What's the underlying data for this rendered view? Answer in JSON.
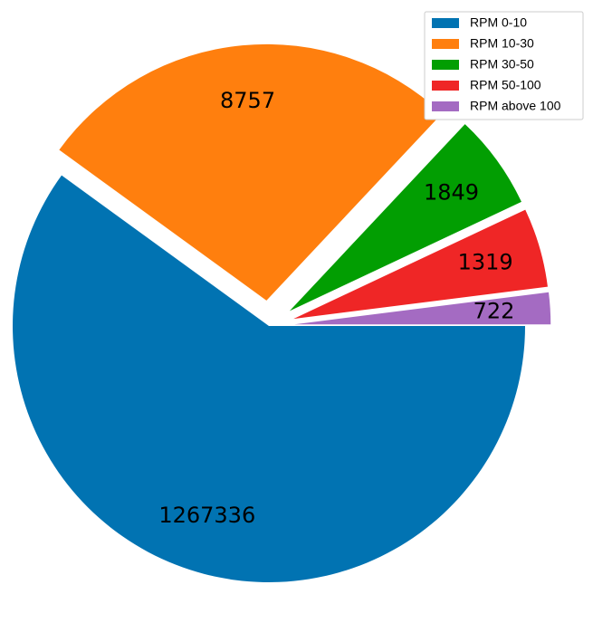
{
  "chart_data": {
    "type": "pie",
    "categories": [
      "RPM 0-10",
      "RPM 10-30",
      "RPM 30-50",
      "RPM 50-100",
      "RPM above 100"
    ],
    "values": [
      60,
      27,
      6,
      5,
      2
    ],
    "annotations": [
      "1267336",
      "8757",
      "1849",
      "1319",
      "722"
    ],
    "colors": [
      "#0173b2",
      "#ff7f0e",
      "#029e02",
      "#ef2626",
      "#a46bc2"
    ],
    "legend": "upper right"
  }
}
